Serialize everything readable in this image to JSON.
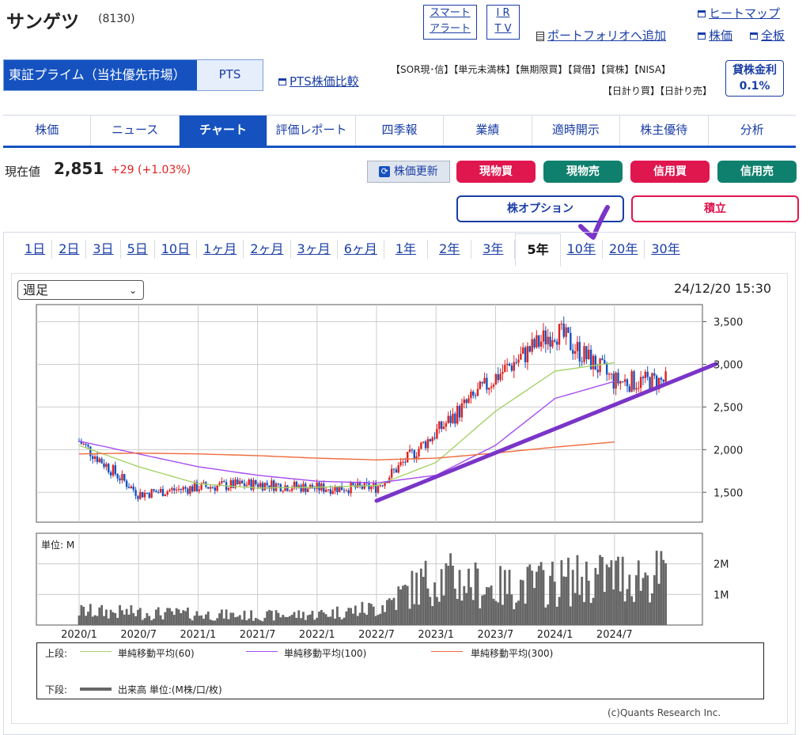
{
  "header": {
    "stock_name": "サンゲツ",
    "stock_code": "(8130)",
    "smart_alert": [
      "スマート",
      "アラート"
    ],
    "irtv": [
      "I R",
      "T V"
    ],
    "heatmap": "ヒートマップ",
    "add_portfolio": "ポートフォリオへ追加",
    "stock_price_link": "株価",
    "board_link": "全板"
  },
  "market": {
    "primary": "東証プライム（当社優先市場）",
    "pts": "PTS",
    "pts_compare": "PTS株価比較"
  },
  "tags": {
    "row1": [
      "【SOR現･信】",
      "【単元未満株】",
      "【無期限買】",
      "【貸借】",
      "【貸株】",
      "【NISA】"
    ],
    "row2": [
      "【日計り買】",
      "【日計り売】"
    ]
  },
  "lending": {
    "label": "貸株金利",
    "rate": "0.1%"
  },
  "tabs": [
    "株価",
    "ニュース",
    "チャート",
    "評価レポート",
    "四季報",
    "業績",
    "適時開示",
    "株主優待",
    "分析"
  ],
  "active_tab": "チャート",
  "price": {
    "label": "現在値",
    "value": "2,851",
    "change": "+29 (+1.03%)"
  },
  "actions": {
    "refresh": "株価更新",
    "cash_buy": "現物買",
    "cash_sell": "現物売",
    "margin_buy": "信用買",
    "margin_sell": "信用売",
    "option": "株オプション",
    "accumulate": "積立"
  },
  "colors": {
    "brand": "#1552c0",
    "buy": "#e0164e",
    "sell": "#10806e",
    "up": "#e02020",
    "annotation": "#7a35c8",
    "ma60": "#a6d26a",
    "ma100": "#a64df0",
    "ma300": "#f06a3c",
    "volume": "#666666"
  },
  "periods": [
    "1日",
    "2日",
    "3日",
    "5日",
    "10日",
    "1ヶ月",
    "2ヶ月",
    "3ヶ月",
    "6ヶ月",
    "1年",
    "2年",
    "3年",
    "5年",
    "10年",
    "20年",
    "30年"
  ],
  "selected_period": "5年",
  "chart": {
    "interval": "週足",
    "timestamp": "24/12/20 15:30",
    "volume_unit": "単位: M",
    "copyright": "(c)Quants Research Inc."
  },
  "chart_data": {
    "type": "line",
    "x": [
      "2020/1",
      "2020/7",
      "2021/1",
      "2021/7",
      "2022/1",
      "2022/7",
      "2023/1",
      "2023/7",
      "2024/1",
      "2024/7"
    ],
    "price_ticks": [
      "1,500",
      "2,000",
      "2,500",
      "3,000",
      "3,500"
    ],
    "price_ylim": [
      1150,
      3700
    ],
    "volume_ticks": [
      "1M",
      "2M"
    ],
    "volume_ylim": [
      0,
      3.0
    ],
    "series": [
      {
        "name": "単純移動平均(60)",
        "values": [
          2050,
          1800,
          1600,
          1550,
          1560,
          1580,
          1850,
          2450,
          2920,
          3020
        ]
      },
      {
        "name": "単純移動平均(100)",
        "values": [
          2100,
          1950,
          1800,
          1700,
          1630,
          1610,
          1700,
          2050,
          2600,
          2800
        ]
      },
      {
        "name": "単純移動平均(300)",
        "values": [
          1950,
          1960,
          1950,
          1930,
          1900,
          1880,
          1900,
          1960,
          2030,
          2090
        ]
      }
    ],
    "price_close": [
      2100,
      1480,
      1560,
      1600,
      1550,
      1560,
      2200,
      2850,
      3400,
      2800
    ],
    "volume": [
      0.45,
      0.4,
      0.35,
      0.3,
      0.35,
      0.55,
      1.6,
      1.2,
      1.4,
      1.6
    ],
    "legend_upper_label": "上段:",
    "legend_lower_label": "下段:",
    "legend_lower": "出来高 単位:(M株/口/枚)"
  }
}
